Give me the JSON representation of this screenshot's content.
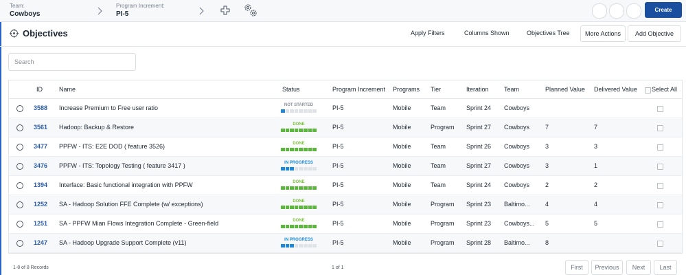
{
  "header": {
    "team_label": "Team:",
    "team": "Cowboys",
    "pi_label": "Program Increment:",
    "pi": "PI-5",
    "create": "Create"
  },
  "toolbar": {
    "title": "Objectives",
    "apply_filters": "Apply Filters",
    "columns_shown": "Columns Shown",
    "objectives_tree": "Objectives Tree",
    "more_actions": "More Actions",
    "add_objective": "Add Objective"
  },
  "search_placeholder": "Search",
  "table": {
    "columns": [
      "ID",
      "Name",
      "Status",
      "Program Increment",
      "Programs",
      "Tier",
      "Iteration",
      "Team",
      "Planned Value",
      "Delivered Value",
      "Select All"
    ],
    "rows": [
      {
        "id": 3588,
        "name": "Increase Premium to Free user ratio",
        "status": {
          "label": "NOT STARTED",
          "color": "#8a8f96",
          "fill": "#1e88d6",
          "segments": 1
        },
        "pi": "PI-5",
        "programs": "Mobile",
        "tier": "Team",
        "iteration": "Sprint 24",
        "team": "Cowboys",
        "planned": null,
        "delivered": null
      },
      {
        "id": 3561,
        "name": "Hadoop: Backup & Restore",
        "status": {
          "label": "DONE",
          "color": "#7cc242",
          "fill": "#5cb83c",
          "segments": 8
        },
        "pi": "PI-5",
        "programs": "Mobile",
        "tier": "Program",
        "iteration": "Sprint 27",
        "team": "Cowboys",
        "planned": 7,
        "delivered": 7
      },
      {
        "id": 3477,
        "name": "PPFW - ITS: E2E DOD ( feature 3526)",
        "status": {
          "label": "DONE",
          "color": "#7cc242",
          "fill": "#5cb83c",
          "segments": 8
        },
        "pi": "PI-5",
        "programs": "Mobile",
        "tier": "Team",
        "iteration": "Sprint 26",
        "team": "Cowboys",
        "planned": 3,
        "delivered": 3
      },
      {
        "id": 3476,
        "name": "PPFW - ITS: Topology Testing ( feature 3417 )",
        "status": {
          "label": "IN PROGRESS",
          "color": "#1e88d6",
          "fill": "#1e88d6",
          "segments": 3
        },
        "pi": "PI-5",
        "programs": "Mobile",
        "tier": "Team",
        "iteration": "Sprint 27",
        "team": "Cowboys",
        "planned": 3,
        "delivered": 1
      },
      {
        "id": 1394,
        "name": "Interface: Basic functional integration with PPFW",
        "status": {
          "label": "DONE",
          "color": "#7cc242",
          "fill": "#5cb83c",
          "segments": 8
        },
        "pi": "PI-5",
        "programs": "Mobile",
        "tier": "Team",
        "iteration": "Sprint 24",
        "team": "Cowboys",
        "planned": 2,
        "delivered": 2
      },
      {
        "id": 1252,
        "name": "SA - Hadoop Solution FFE Complete (w/ exceptions)",
        "status": {
          "label": "DONE",
          "color": "#7cc242",
          "fill": "#5cb83c",
          "segments": 8
        },
        "pi": "PI-5",
        "programs": "Mobile",
        "tier": "Program",
        "iteration": "Sprint 23",
        "team": "Baltimo...",
        "planned": 4,
        "delivered": 4
      },
      {
        "id": 1251,
        "name": "SA - PPFW Mian Flows Integration Complete - Green-field",
        "status": {
          "label": "DONE",
          "color": "#7cc242",
          "fill": "#5cb83c",
          "segments": 8
        },
        "pi": "PI-5",
        "programs": "Mobile",
        "tier": "Program",
        "iteration": "Sprint 23",
        "team": "Cowboys...",
        "planned": 5,
        "delivered": 5
      },
      {
        "id": 1247,
        "name": "SA - Hadoop Upgrade Support Complete (v11)",
        "status": {
          "label": "IN PROGRESS",
          "color": "#1e88d6",
          "fill": "#1e88d6",
          "segments": 3
        },
        "pi": "PI-5",
        "programs": "Mobile",
        "tier": "Program",
        "iteration": "Sprint 28",
        "team": "Baltimo...",
        "planned": 8,
        "delivered": null
      }
    ]
  },
  "footer": {
    "records": "1-8 of 8 Records",
    "page": "1 of 1",
    "buttons": [
      "First",
      "Previous",
      "Next",
      "Last"
    ]
  }
}
